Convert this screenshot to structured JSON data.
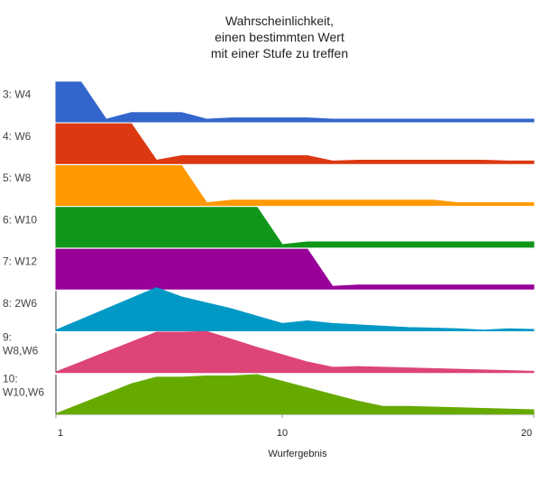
{
  "chart_data": {
    "type": "area",
    "title": [
      "Wahrscheinlichkeit,",
      "einen bestimmten Wert",
      "mit einer Stufe zu treffen"
    ],
    "xlabel": "Wurfergebnis",
    "ylabel": "",
    "xlim": [
      1,
      20
    ],
    "xticks": [
      1,
      10,
      20
    ],
    "ymax": 0.17,
    "legend": "none",
    "grid": false,
    "series": [
      {
        "name": "3: W4",
        "label_lines": [
          "3: W4"
        ],
        "color": "#3366cc",
        "x": [
          1,
          2,
          3,
          4,
          5,
          6,
          7,
          8,
          9,
          10,
          11,
          12,
          13,
          14,
          15,
          16,
          17,
          18,
          19,
          20
        ],
        "values": [
          0.1667,
          0.1667,
          0.0111,
          0.0389,
          0.0389,
          0.0389,
          0.0111,
          0.0167,
          0.0167,
          0.0167,
          0.0167,
          0.0111,
          0.0111,
          0.0111,
          0.0111,
          0.0111,
          0.0111,
          0.0111,
          0.0111,
          0.0111
        ]
      },
      {
        "name": "4: W6",
        "label_lines": [
          "4: W6"
        ],
        "color": "#dc3912",
        "x": [
          1,
          2,
          3,
          4,
          5,
          6,
          7,
          8,
          9,
          10,
          11,
          12,
          13,
          14,
          15,
          16,
          17,
          18,
          19,
          20
        ],
        "values": [
          0.1667,
          0.1667,
          0.1667,
          0.1667,
          0.0143,
          0.0333,
          0.0333,
          0.0333,
          0.0333,
          0.0333,
          0.0333,
          0.0111,
          0.0143,
          0.0143,
          0.0143,
          0.0143,
          0.0143,
          0.0143,
          0.0111,
          0.0111
        ]
      },
      {
        "name": "5: W8",
        "label_lines": [
          "5: W8"
        ],
        "color": "#ff9900",
        "x": [
          1,
          2,
          3,
          4,
          5,
          6,
          7,
          8,
          9,
          10,
          11,
          12,
          13,
          14,
          15,
          16,
          17,
          18,
          19,
          20
        ],
        "values": [
          0.1667,
          0.1667,
          0.1667,
          0.1667,
          0.1667,
          0.1667,
          0.0111,
          0.0222,
          0.0222,
          0.0222,
          0.0222,
          0.0222,
          0.0222,
          0.0222,
          0.0222,
          0.0222,
          0.0111,
          0.0111,
          0.0111,
          0.0111
        ]
      },
      {
        "name": "6: W10",
        "label_lines": [
          "6: W10"
        ],
        "color": "#109618",
        "x": [
          1,
          2,
          3,
          4,
          5,
          6,
          7,
          8,
          9,
          10,
          11,
          12,
          13,
          14,
          15,
          16,
          17,
          18,
          19,
          20
        ],
        "values": [
          0.1667,
          0.1667,
          0.1667,
          0.1667,
          0.1667,
          0.1667,
          0.1667,
          0.1667,
          0.1667,
          0.0111,
          0.0222,
          0.0222,
          0.0222,
          0.0222,
          0.0222,
          0.0222,
          0.0222,
          0.0222,
          0.0222,
          0.0222
        ]
      },
      {
        "name": "7: W12",
        "label_lines": [
          "7: W12"
        ],
        "color": "#990099",
        "x": [
          1,
          2,
          3,
          4,
          5,
          6,
          7,
          8,
          9,
          10,
          11,
          12,
          13,
          14,
          15,
          16,
          17,
          18,
          19,
          20
        ],
        "values": [
          0.1667,
          0.1667,
          0.1667,
          0.1667,
          0.1667,
          0.1667,
          0.1667,
          0.1667,
          0.1667,
          0.1667,
          0.1667,
          0.0111,
          0.0167,
          0.0167,
          0.0167,
          0.0167,
          0.0167,
          0.0167,
          0.0167,
          0.0167
        ]
      },
      {
        "name": "8: 2W6",
        "label_lines": [
          "8: 2W6"
        ],
        "color": "#0099c6",
        "x": [
          1,
          2,
          3,
          4,
          5,
          6,
          7,
          8,
          9,
          10,
          11,
          12,
          13,
          14,
          15,
          16,
          17,
          18,
          19,
          20
        ],
        "values": [
          0.0028,
          0.0472,
          0.0917,
          0.1361,
          0.1806,
          0.1417,
          0.1167,
          0.0917,
          0.0611,
          0.0306,
          0.0417,
          0.0306,
          0.025,
          0.0194,
          0.0139,
          0.0111,
          0.0083,
          0.0028,
          0.0083,
          0.0056
        ]
      },
      {
        "name": "9: W8,W6",
        "label_lines": [
          "9:",
          "W8,W6"
        ],
        "color": "#dd4477",
        "x": [
          1,
          2,
          3,
          4,
          5,
          6,
          7,
          8,
          9,
          10,
          11,
          12,
          13,
          14,
          15,
          16,
          17,
          18,
          19,
          20
        ],
        "values": [
          0.0028,
          0.0444,
          0.0861,
          0.1278,
          0.1694,
          0.1694,
          0.1722,
          0.1389,
          0.1056,
          0.075,
          0.0444,
          0.0222,
          0.025,
          0.0222,
          0.0194,
          0.0167,
          0.0139,
          0.0111,
          0.0083,
          0.0056
        ]
      },
      {
        "name": "10: W10,W6",
        "label_lines": [
          "10:",
          "W10,W6"
        ],
        "color": "#66aa00",
        "x": [
          1,
          2,
          3,
          4,
          5,
          6,
          7,
          8,
          9,
          10,
          11,
          12,
          13,
          14,
          15,
          16,
          17,
          18,
          19,
          20
        ],
        "values": [
          0.0028,
          0.0444,
          0.0861,
          0.1278,
          0.1556,
          0.1556,
          0.1611,
          0.1611,
          0.1667,
          0.1389,
          0.1111,
          0.0833,
          0.0556,
          0.0333,
          0.0333,
          0.0306,
          0.0278,
          0.025,
          0.0222,
          0.0194
        ]
      }
    ]
  }
}
